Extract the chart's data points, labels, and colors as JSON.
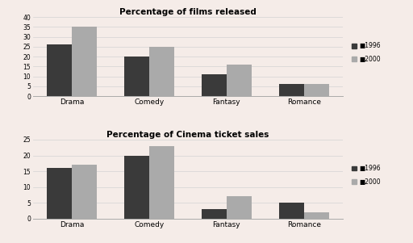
{
  "chart1": {
    "title": "Percentage of films released",
    "categories": [
      "Drama",
      "Comedy",
      "Fantasy",
      "Romance"
    ],
    "values_1996": [
      26,
      20,
      11,
      6
    ],
    "values_2000": [
      35,
      25,
      16,
      6
    ],
    "ylim": [
      0,
      40
    ],
    "yticks": [
      0,
      5,
      10,
      15,
      20,
      25,
      30,
      35,
      40
    ]
  },
  "chart2": {
    "title": "Percentage of Cinema ticket sales",
    "categories": [
      "Drama",
      "Comedy",
      "Fantasy",
      "Romance"
    ],
    "values_1996": [
      16,
      20,
      3,
      5
    ],
    "values_2000": [
      17,
      23,
      7,
      2
    ],
    "ylim": [
      0,
      25
    ],
    "yticks": [
      0,
      5,
      10,
      15,
      20,
      25
    ]
  },
  "color_1996": "#3a3a3a",
  "color_2000": "#aaaaaa",
  "legend_labels": [
    "1996",
    "2000"
  ],
  "background_color": "#f5ece8",
  "bar_width": 0.32
}
